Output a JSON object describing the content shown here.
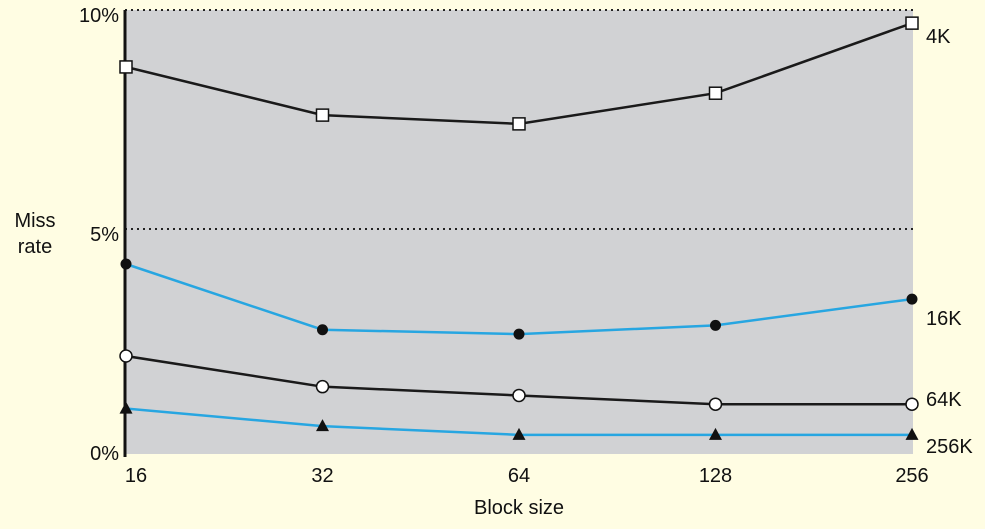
{
  "chart_data": {
    "type": "line",
    "title": "",
    "xlabel": "Block size",
    "ylabel_lines": [
      "Miss",
      "rate"
    ],
    "categories": [
      "16",
      "32",
      "64",
      "128",
      "256"
    ],
    "y_ticks": [
      "0%",
      "5%",
      "10%"
    ],
    "y_tick_values": [
      0,
      5,
      10
    ],
    "ylim": [
      0,
      10
    ],
    "grid": "dotted lines at 5% and 10%",
    "series": [
      {
        "name": "4K",
        "values": [
          8.7,
          7.6,
          7.4,
          8.1,
          9.7
        ],
        "color": "#1a1a1a",
        "marker": "square"
      },
      {
        "name": "16K",
        "values": [
          4.2,
          2.7,
          2.6,
          2.8,
          3.4
        ],
        "color": "#27a6e1",
        "marker": "filled-circle"
      },
      {
        "name": "64K",
        "values": [
          2.1,
          1.4,
          1.2,
          1.0,
          1.0
        ],
        "color": "#1a1a1a",
        "marker": "open-circle"
      },
      {
        "name": "256K",
        "values": [
          0.9,
          0.5,
          0.3,
          0.3,
          0.3
        ],
        "color": "#27a6e1",
        "marker": "triangle"
      }
    ]
  },
  "colors": {
    "page_background": "#fffde3",
    "plot_background": "#d1d2d4"
  }
}
